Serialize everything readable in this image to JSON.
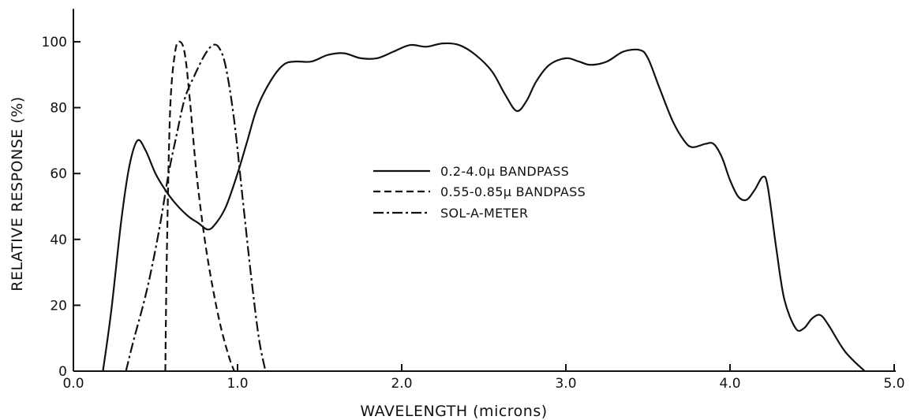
{
  "chart_data": {
    "type": "line",
    "title": "",
    "xlabel": "WAVELENGTH (microns)",
    "ylabel": "RELATIVE RESPONSE (%)",
    "xlim": [
      0,
      5
    ],
    "ylim": [
      0,
      110
    ],
    "grid": false,
    "legend_position": "center",
    "x_ticks": [
      "0.0",
      "1.0",
      "2.0",
      "3.0",
      "4.0",
      "5.0"
    ],
    "y_ticks": [
      "0",
      "20",
      "40",
      "60",
      "80",
      "100"
    ],
    "ink_color": "#111111",
    "series": [
      {
        "name": "0.2-4.0μ BANDPASS",
        "line_style": "solid",
        "points": [
          [
            0.18,
            0
          ],
          [
            0.23,
            18
          ],
          [
            0.29,
            45
          ],
          [
            0.34,
            62
          ],
          [
            0.39,
            70
          ],
          [
            0.44,
            67
          ],
          [
            0.5,
            60
          ],
          [
            0.56,
            55
          ],
          [
            0.62,
            51
          ],
          [
            0.7,
            47
          ],
          [
            0.76,
            45
          ],
          [
            0.82,
            43
          ],
          [
            0.87,
            45
          ],
          [
            0.93,
            50
          ],
          [
            1.0,
            60
          ],
          [
            1.06,
            70
          ],
          [
            1.12,
            80
          ],
          [
            1.2,
            88
          ],
          [
            1.28,
            93
          ],
          [
            1.35,
            94
          ],
          [
            1.45,
            94
          ],
          [
            1.55,
            96
          ],
          [
            1.65,
            96.5
          ],
          [
            1.75,
            95
          ],
          [
            1.85,
            95
          ],
          [
            1.95,
            97
          ],
          [
            2.05,
            99
          ],
          [
            2.15,
            98.5
          ],
          [
            2.25,
            99.5
          ],
          [
            2.35,
            99
          ],
          [
            2.45,
            96
          ],
          [
            2.55,
            91
          ],
          [
            2.63,
            84
          ],
          [
            2.7,
            79
          ],
          [
            2.76,
            82
          ],
          [
            2.82,
            88
          ],
          [
            2.9,
            93
          ],
          [
            3.0,
            95
          ],
          [
            3.08,
            94
          ],
          [
            3.15,
            93
          ],
          [
            3.25,
            94
          ],
          [
            3.35,
            97
          ],
          [
            3.45,
            97.5
          ],
          [
            3.5,
            95
          ],
          [
            3.57,
            86
          ],
          [
            3.65,
            76
          ],
          [
            3.72,
            70
          ],
          [
            3.77,
            68
          ],
          [
            3.85,
            69
          ],
          [
            3.9,
            69
          ],
          [
            3.95,
            65
          ],
          [
            4.0,
            58
          ],
          [
            4.05,
            53
          ],
          [
            4.1,
            52
          ],
          [
            4.15,
            55
          ],
          [
            4.2,
            59
          ],
          [
            4.23,
            56
          ],
          [
            4.28,
            38
          ],
          [
            4.33,
            22
          ],
          [
            4.4,
            13
          ],
          [
            4.45,
            13
          ],
          [
            4.5,
            16
          ],
          [
            4.55,
            17
          ],
          [
            4.6,
            14
          ],
          [
            4.7,
            6
          ],
          [
            4.82,
            0
          ]
        ]
      },
      {
        "name": "0.55-0.85μ BANDPASS",
        "line_style": "dashed",
        "points": [
          [
            0.56,
            0
          ],
          [
            0.57,
            38
          ],
          [
            0.59,
            80
          ],
          [
            0.62,
            97
          ],
          [
            0.65,
            100
          ],
          [
            0.68,
            96
          ],
          [
            0.71,
            82
          ],
          [
            0.75,
            60
          ],
          [
            0.8,
            40
          ],
          [
            0.85,
            25
          ],
          [
            0.9,
            13
          ],
          [
            0.95,
            4
          ],
          [
            0.98,
            0
          ]
        ]
      },
      {
        "name": "SOL-A-METER",
        "line_style": "dashdot",
        "points": [
          [
            0.32,
            0
          ],
          [
            0.37,
            10
          ],
          [
            0.43,
            21
          ],
          [
            0.48,
            32
          ],
          [
            0.53,
            45
          ],
          [
            0.58,
            60
          ],
          [
            0.63,
            72
          ],
          [
            0.68,
            83
          ],
          [
            0.74,
            90
          ],
          [
            0.8,
            96
          ],
          [
            0.85,
            99
          ],
          [
            0.89,
            98
          ],
          [
            0.93,
            92
          ],
          [
            0.98,
            76
          ],
          [
            1.03,
            53
          ],
          [
            1.08,
            30
          ],
          [
            1.13,
            10
          ],
          [
            1.17,
            0
          ]
        ]
      }
    ]
  }
}
